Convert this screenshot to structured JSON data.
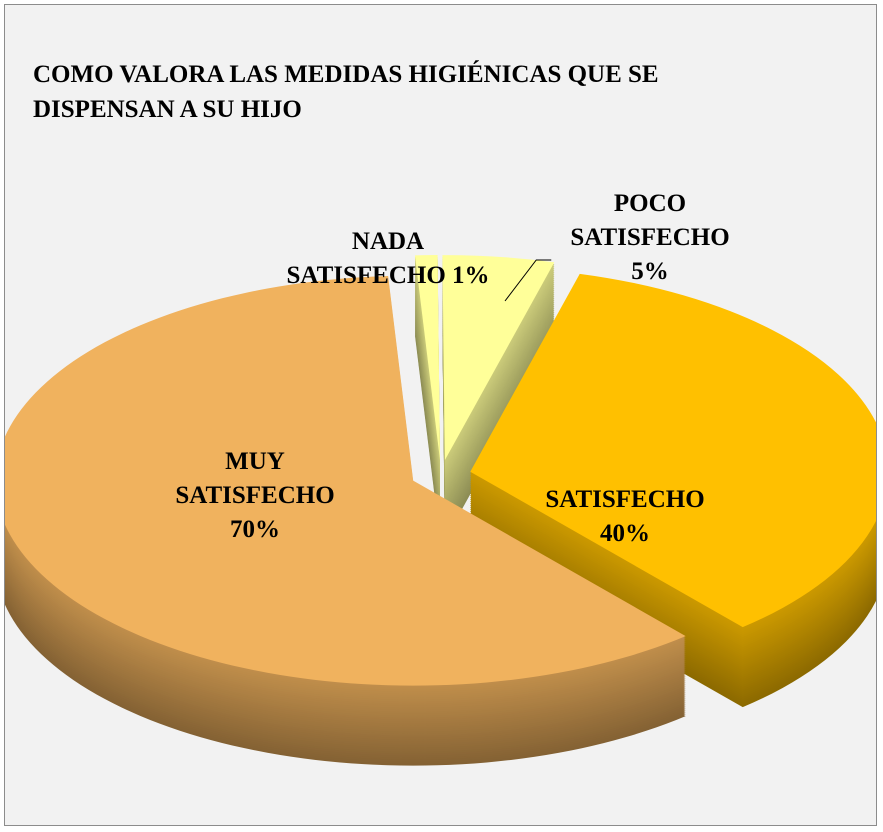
{
  "chart_data": {
    "type": "pie",
    "title": "COMO VALORA LAS MEDIDAS HIGIÉNICAS QUE SE DISPENSAN A SU HIJO",
    "categories": [
      "NADA SATISFECHO",
      "POCO SATISFECHO",
      "SATISFECHO",
      "MUY SATISFECHO"
    ],
    "values": [
      1,
      5,
      40,
      70
    ],
    "value_labels": [
      "1%",
      "5%",
      "40%",
      "70%"
    ],
    "colors": [
      "#ffff99",
      "#ffff99",
      "#ffc000",
      "#f0b25e"
    ],
    "three_d": true
  }
}
